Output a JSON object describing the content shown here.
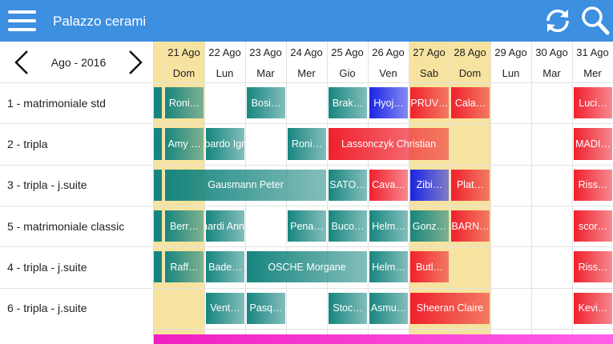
{
  "header": {
    "title": "Palazzo cerami"
  },
  "month_nav": {
    "label": "Ago - 2016"
  },
  "days": [
    {
      "date": "21 Ago",
      "weekday": "Dom",
      "weekend": true
    },
    {
      "date": "22 Ago",
      "weekday": "Lun",
      "weekend": false
    },
    {
      "date": "23 Ago",
      "weekday": "Mar",
      "weekend": false
    },
    {
      "date": "24 Ago",
      "weekday": "Mer",
      "weekend": false
    },
    {
      "date": "25 Ago",
      "weekday": "Gio",
      "weekend": false
    },
    {
      "date": "26 Ago",
      "weekday": "Ven",
      "weekend": false
    },
    {
      "date": "27 Ago",
      "weekday": "Sab",
      "weekend": true
    },
    {
      "date": "28 Ago",
      "weekday": "Dom",
      "weekend": true
    },
    {
      "date": "29 Ago",
      "weekday": "Lun",
      "weekend": false
    },
    {
      "date": "30 Ago",
      "weekday": "Mar",
      "weekend": false
    },
    {
      "date": "31 Ago",
      "weekday": "Mer",
      "weekend": false
    }
  ],
  "rooms": [
    {
      "name": "1 - matrimoniale std",
      "bookings": [
        {
          "label": "Roni…",
          "from": "21 Ago",
          "to": "21 Ago",
          "color": "#17857f"
        },
        {
          "label": "Bosi…",
          "from": "23 Ago",
          "to": "23 Ago",
          "color": "#17857f"
        },
        {
          "label": "Brak…",
          "from": "25 Ago",
          "to": "25 Ago",
          "color": "#17857f"
        },
        {
          "label": "Hyoj…",
          "from": "26 Ago",
          "to": "26 Ago",
          "color": "#1a24e6"
        },
        {
          "label": "PRUV…",
          "from": "27 Ago",
          "to": "27 Ago",
          "color": "#f0202c"
        },
        {
          "label": "Cala…",
          "from": "28 Ago",
          "to": "28 Ago",
          "color": "#f0202c"
        },
        {
          "label": "Luci…",
          "from": "31 Ago",
          "to": "31 Ago",
          "color": "#f0202c"
        }
      ]
    },
    {
      "name": "2 - tripla",
      "bookings": [
        {
          "label": "Amy …",
          "from": "21 Ago",
          "to": "21 Ago",
          "color": "#17857f"
        },
        {
          "label": "Lombardo Ignazio",
          "from": "22 Ago",
          "to": "22 Ago",
          "color": "#17857f"
        },
        {
          "label": "Roni…",
          "from": "24 Ago",
          "to": "24 Ago",
          "color": "#17857f"
        },
        {
          "label": "Lassonczyk Christian",
          "from": "25 Ago",
          "to": "27 Ago",
          "color": "#f0202c"
        },
        {
          "label": "MADI…",
          "from": "31 Ago",
          "to": "31 Ago",
          "color": "#f0202c"
        }
      ]
    },
    {
      "name": "3 - tripla - j.suite",
      "bookings": [
        {
          "label": "Gausmann Peter",
          "from": "21 Ago",
          "to": "24 Ago",
          "color": "#17857f"
        },
        {
          "label": "SATO…",
          "from": "25 Ago",
          "to": "25 Ago",
          "color": "#17857f"
        },
        {
          "label": "Cava…",
          "from": "26 Ago",
          "to": "26 Ago",
          "color": "#f0202c"
        },
        {
          "label": "Zibi…",
          "from": "27 Ago",
          "to": "27 Ago",
          "color": "#1a24e6"
        },
        {
          "label": "Plat…",
          "from": "28 Ago",
          "to": "28 Ago",
          "color": "#f0202c"
        },
        {
          "label": "Riss…",
          "from": "31 Ago",
          "to": "31 Ago",
          "color": "#f0202c"
        }
      ]
    },
    {
      "name": "5 - matrimoniale classic",
      "bookings": [
        {
          "label": "Berr…",
          "from": "21 Ago",
          "to": "21 Ago",
          "color": "#17857f"
        },
        {
          "label": "Bernardi Annarita",
          "from": "22 Ago",
          "to": "22 Ago",
          "color": "#17857f"
        },
        {
          "label": "Pena…",
          "from": "24 Ago",
          "to": "24 Ago",
          "color": "#17857f"
        },
        {
          "label": "Buco…",
          "from": "25 Ago",
          "to": "25 Ago",
          "color": "#17857f"
        },
        {
          "label": "Helm…",
          "from": "26 Ago",
          "to": "26 Ago",
          "color": "#17857f"
        },
        {
          "label": "Gonz…",
          "from": "27 Ago",
          "to": "27 Ago",
          "color": "#17857f"
        },
        {
          "label": "BARN…",
          "from": "28 Ago",
          "to": "28 Ago",
          "color": "#f0202c"
        },
        {
          "label": "scor…",
          "from": "31 Ago",
          "to": "31 Ago",
          "color": "#f0202c"
        }
      ]
    },
    {
      "name": "4 - tripla - j.suite",
      "bookings": [
        {
          "label": "Raff…",
          "from": "21 Ago",
          "to": "21 Ago",
          "color": "#17857f"
        },
        {
          "label": "Bade…",
          "from": "22 Ago",
          "to": "22 Ago",
          "color": "#17857f"
        },
        {
          "label": "OSCHE Morgane",
          "from": "23 Ago",
          "to": "25 Ago",
          "color": "#17857f"
        },
        {
          "label": "Helm…",
          "from": "26 Ago",
          "to": "26 Ago",
          "color": "#17857f"
        },
        {
          "label": "Butl…",
          "from": "27 Ago",
          "to": "27 Ago",
          "color": "#f0202c"
        },
        {
          "label": "Riss…",
          "from": "31 Ago",
          "to": "31 Ago",
          "color": "#f0202c"
        }
      ]
    },
    {
      "name": "6 - tripla - j.suite",
      "bookings": [
        {
          "label": "Vent…",
          "from": "22 Ago",
          "to": "22 Ago",
          "color": "#17857f"
        },
        {
          "label": "Pasq…",
          "from": "23 Ago",
          "to": "23 Ago",
          "color": "#17857f"
        },
        {
          "label": "Stoc…",
          "from": "25 Ago",
          "to": "25 Ago",
          "color": "#17857f"
        },
        {
          "label": "Asmu…",
          "from": "26 Ago",
          "to": "26 Ago",
          "color": "#17857f"
        },
        {
          "label": "Sheeran Claire",
          "from": "27 Ago",
          "to": "28 Ago",
          "color": "#f0202c"
        },
        {
          "label": "Kevi…",
          "from": "31 Ago",
          "to": "31 Ago",
          "color": "#f0202c"
        }
      ]
    }
  ]
}
